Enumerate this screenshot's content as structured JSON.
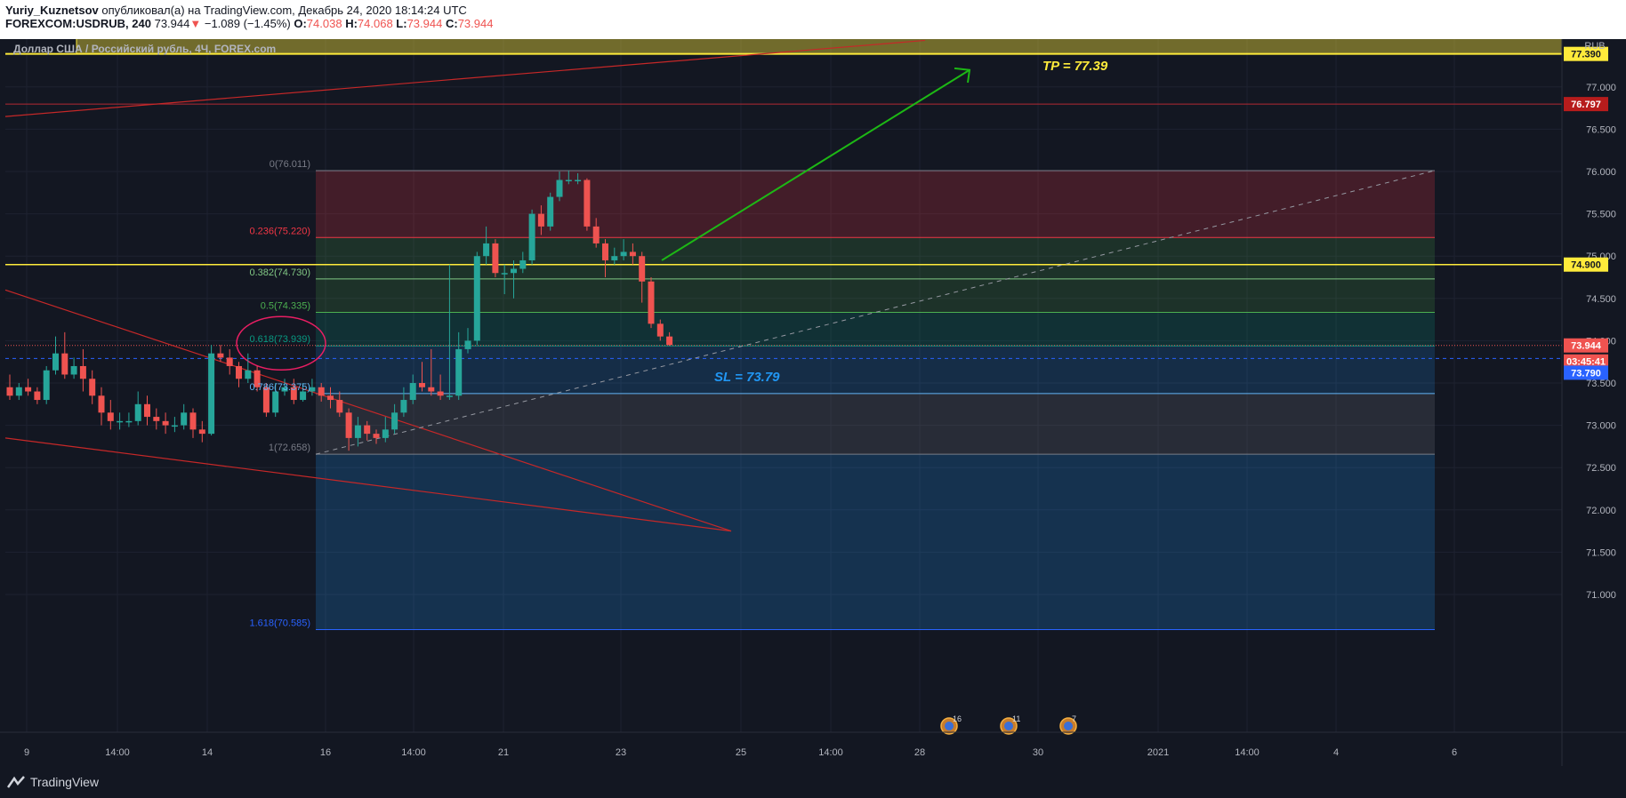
{
  "header": {
    "author": "Yuriy_Kuznetsov",
    "published_text": " опубликовал(а) на TradingView.com, Декабрь 24, 2020 18:14:24 UTC",
    "symbol": "FOREXCOM:USDRUB, 240",
    "last": "73.944",
    "arrow": "▼",
    "change": "−1.089 (−1.45%)",
    "o_label": "O:",
    "o": "74.038",
    "h_label": "H:",
    "h": "74.068",
    "l_label": "L:",
    "l": "73.944",
    "c_label": "C:",
    "c": "73.944"
  },
  "legend_title": "Доллар США / Российский рубль, 4Ч, FOREX.com",
  "currency": "RUB",
  "annotations": {
    "tp": "TP = 77.39",
    "sl": "SL = 73.79",
    "events": [
      "16",
      "11",
      "7"
    ]
  },
  "price_tags": {
    "tp": "77.390",
    "upper_red": "76.797",
    "yellow": "74.900",
    "last": "73.944",
    "countdown": "03:45:41",
    "sl": "73.790"
  },
  "colors": {
    "up": "#26a69a",
    "down": "#ef5350",
    "bg": "#131722",
    "yellow": "#ffeb3b",
    "tp_text": "#ffeb3b",
    "sl_text": "#2196f3"
  },
  "footer": {
    "brand": "TradingView"
  },
  "chart_data": {
    "type": "candlestick",
    "symbol": "FOREXCOM:USDRUB",
    "timeframe": "240",
    "ylim": [
      70.45,
      77.55
    ],
    "y_ticks": [
      "71.000",
      "71.500",
      "72.000",
      "72.500",
      "73.000",
      "73.500",
      "74.000",
      "74.500",
      "75.000",
      "75.500",
      "76.000",
      "76.500",
      "77.000"
    ],
    "x_ticks": [
      "9",
      "14:00",
      "14",
      "16",
      "14:00",
      "21",
      "23",
      "25",
      "14:00",
      "28",
      "30",
      "2021",
      "14:00",
      "4",
      "6"
    ],
    "fib_levels": [
      {
        "label": "0(76.011)",
        "value": 76.011
      },
      {
        "label": "0.236(75.220)",
        "value": 75.22
      },
      {
        "label": "0.382(74.730)",
        "value": 74.73
      },
      {
        "label": "0.5(74.335)",
        "value": 74.335
      },
      {
        "label": "0.618(73.939)",
        "value": 73.939
      },
      {
        "label": "0.786(73.375)",
        "value": 73.375
      },
      {
        "label": "1(72.658)",
        "value": 72.658
      },
      {
        "label": "1.618(70.585)",
        "value": 70.585
      }
    ],
    "horizontal_levels": [
      77.39,
      76.797,
      74.9
    ],
    "candles": [
      [
        73.45,
        73.35,
        73.6,
        73.3
      ],
      [
        73.35,
        73.45,
        73.5,
        73.3
      ],
      [
        73.45,
        73.4,
        73.55,
        73.35
      ],
      [
        73.4,
        73.3,
        73.45,
        73.25
      ],
      [
        73.3,
        73.65,
        73.7,
        73.25
      ],
      [
        73.65,
        73.85,
        74.05,
        73.6
      ],
      [
        73.85,
        73.6,
        74.1,
        73.55
      ],
      [
        73.6,
        73.7,
        73.8,
        73.55
      ],
      [
        73.7,
        73.55,
        73.9,
        73.4
      ],
      [
        73.55,
        73.35,
        73.65,
        73.25
      ],
      [
        73.35,
        73.15,
        73.45,
        73.0
      ],
      [
        73.15,
        73.05,
        73.3,
        72.95
      ],
      [
        73.05,
        73.05,
        73.15,
        72.95
      ],
      [
        73.05,
        73.05,
        73.15,
        72.98
      ],
      [
        73.05,
        73.25,
        73.4,
        73.0
      ],
      [
        73.25,
        73.1,
        73.35,
        73.0
      ],
      [
        73.1,
        73.05,
        73.2,
        72.95
      ],
      [
        73.05,
        73.0,
        73.15,
        72.9
      ],
      [
        73.0,
        73.0,
        73.1,
        72.92
      ],
      [
        73.0,
        73.15,
        73.25,
        72.95
      ],
      [
        73.15,
        72.95,
        73.2,
        72.85
      ],
      [
        72.95,
        72.9,
        73.05,
        72.8
      ],
      [
        72.9,
        73.85,
        73.95,
        72.88
      ],
      [
        73.85,
        73.8,
        73.95,
        73.75
      ],
      [
        73.8,
        73.7,
        73.9,
        73.6
      ],
      [
        73.7,
        73.55,
        73.75,
        73.45
      ],
      [
        73.55,
        73.65,
        73.85,
        73.5
      ],
      [
        73.65,
        73.45,
        73.7,
        73.4
      ],
      [
        73.45,
        73.15,
        73.5,
        73.1
      ],
      [
        73.15,
        73.4,
        73.5,
        73.1
      ],
      [
        73.4,
        73.45,
        73.55,
        73.35
      ],
      [
        73.45,
        73.3,
        73.55,
        73.25
      ],
      [
        73.3,
        73.4,
        73.5,
        73.28
      ],
      [
        73.4,
        73.45,
        73.55,
        73.35
      ],
      [
        73.45,
        73.35,
        73.5,
        73.28
      ],
      [
        73.35,
        73.3,
        73.45,
        73.2
      ],
      [
        73.3,
        73.15,
        73.4,
        73.1
      ],
      [
        73.15,
        72.85,
        73.2,
        72.7
      ],
      [
        72.85,
        73.0,
        73.1,
        72.75
      ],
      [
        73.0,
        72.9,
        73.05,
        72.82
      ],
      [
        72.9,
        72.85,
        72.95,
        72.78
      ],
      [
        72.85,
        72.95,
        73.1,
        72.8
      ],
      [
        72.95,
        73.15,
        73.25,
        72.9
      ],
      [
        73.15,
        73.3,
        73.45,
        73.1
      ],
      [
        73.3,
        73.5,
        73.6,
        73.25
      ],
      [
        73.5,
        73.45,
        73.75,
        73.4
      ],
      [
        73.45,
        73.4,
        73.9,
        73.35
      ],
      [
        73.4,
        73.35,
        73.6,
        73.3
      ],
      [
        73.35,
        73.35,
        74.9,
        73.3
      ],
      [
        73.35,
        73.9,
        74.1,
        73.3
      ],
      [
        73.9,
        74.0,
        74.15,
        73.85
      ],
      [
        74.0,
        75.0,
        75.05,
        73.95
      ],
      [
        75.0,
        75.15,
        75.35,
        74.9
      ],
      [
        75.15,
        74.8,
        75.2,
        74.75
      ],
      [
        74.8,
        74.8,
        74.9,
        74.55
      ],
      [
        74.8,
        74.85,
        74.95,
        74.5
      ],
      [
        74.85,
        74.95,
        75.05,
        74.8
      ],
      [
        74.95,
        75.5,
        75.55,
        74.9
      ],
      [
        75.5,
        75.35,
        75.6,
        75.25
      ],
      [
        75.35,
        75.7,
        75.75,
        75.3
      ],
      [
        75.7,
        75.9,
        76.0,
        75.65
      ],
      [
        75.9,
        75.9,
        76.01,
        75.85
      ],
      [
        75.9,
        75.9,
        75.98,
        75.85
      ],
      [
        75.9,
        75.35,
        75.92,
        75.3
      ],
      [
        75.35,
        75.15,
        75.45,
        75.1
      ],
      [
        75.15,
        74.95,
        75.2,
        74.75
      ],
      [
        74.95,
        75.0,
        75.1,
        74.9
      ],
      [
        75.0,
        75.05,
        75.2,
        74.95
      ],
      [
        75.05,
        75.0,
        75.15,
        74.9
      ],
      [
        75.0,
        74.7,
        75.05,
        74.45
      ],
      [
        74.7,
        74.2,
        74.75,
        74.15
      ],
      [
        74.2,
        74.05,
        74.25,
        74.0
      ],
      [
        74.05,
        73.95,
        74.1,
        73.94
      ]
    ]
  }
}
